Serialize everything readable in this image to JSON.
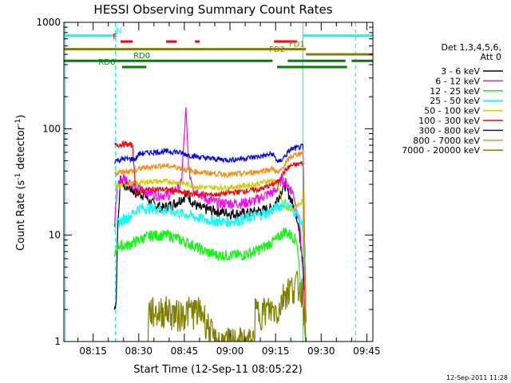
{
  "chart_data": {
    "type": "line",
    "title": "HESSI Observing Summary Count Rates",
    "xlabel": "Start Time (12-Sep-11 08:05:22)",
    "ylabel_main": "Count Rate (s",
    "ylabel_sup1": "-1",
    "ylabel_mid": " detector",
    "ylabel_sup2": "-1",
    "ylabel_end": ")",
    "y_scale": "log",
    "ylim": [
      1,
      1000
    ],
    "xlim_minutes": [
      5.37,
      107.0
    ],
    "y_ticks": [
      {
        "value": 1,
        "label": "1"
      },
      {
        "value": 10,
        "label": "10"
      },
      {
        "value": 100,
        "label": "100"
      },
      {
        "value": 1000,
        "label": "1000"
      }
    ],
    "x_ticks": [
      {
        "t": 15,
        "label": "08:15"
      },
      {
        "t": 30,
        "label": "08:30"
      },
      {
        "t": 45,
        "label": "08:45"
      },
      {
        "t": 60,
        "label": "09:00"
      },
      {
        "t": 75,
        "label": "09:15"
      },
      {
        "t": 90,
        "label": "09:30"
      },
      {
        "t": 105,
        "label": "09:45"
      }
    ],
    "timestamp": "12-Sep-2011 11:28",
    "legend_header": [
      "Det 1,3,4,5,6,",
      "Att 0"
    ],
    "series": [
      {
        "name": "3 - 6 keV",
        "color": "#000000",
        "points": [
          [
            22,
            2
          ],
          [
            22.6,
            2.5
          ],
          [
            23,
            10
          ],
          [
            24,
            35
          ],
          [
            25,
            30
          ],
          [
            27,
            28
          ],
          [
            29,
            25
          ],
          [
            32,
            24
          ],
          [
            34,
            20
          ],
          [
            38,
            18
          ],
          [
            42,
            20
          ],
          [
            44,
            22
          ],
          [
            46,
            24
          ],
          [
            48,
            20
          ],
          [
            50,
            18
          ],
          [
            55,
            17
          ],
          [
            60,
            16
          ],
          [
            65,
            16
          ],
          [
            70,
            17
          ],
          [
            74,
            18
          ],
          [
            78,
            30
          ],
          [
            80,
            22
          ],
          [
            82,
            15
          ],
          [
            84,
            6
          ],
          [
            85,
            1.5
          ]
        ]
      },
      {
        "name": "6 - 12 keV",
        "color": "#ff00ff",
        "points": [
          [
            22,
            12
          ],
          [
            23,
            30
          ],
          [
            25,
            35
          ],
          [
            28,
            30
          ],
          [
            30,
            28
          ],
          [
            32,
            26
          ],
          [
            36,
            24
          ],
          [
            40,
            24
          ],
          [
            44,
            30
          ],
          [
            45.5,
            150
          ],
          [
            46.5,
            40
          ],
          [
            48,
            28
          ],
          [
            52,
            22
          ],
          [
            56,
            20
          ],
          [
            60,
            20
          ],
          [
            64,
            20
          ],
          [
            68,
            21
          ],
          [
            72,
            24
          ],
          [
            75,
            26
          ],
          [
            77,
            34
          ],
          [
            79,
            30
          ],
          [
            81,
            24
          ],
          [
            83,
            12
          ],
          [
            84,
            4
          ],
          [
            85,
            1.5
          ]
        ]
      },
      {
        "name": "12 - 25 keV",
        "color": "#00ff00",
        "points": [
          [
            22,
            6
          ],
          [
            23,
            8
          ],
          [
            26,
            8
          ],
          [
            30,
            9
          ],
          [
            34,
            10
          ],
          [
            40,
            10
          ],
          [
            44,
            9
          ],
          [
            48,
            8
          ],
          [
            52,
            7
          ],
          [
            56,
            6.5
          ],
          [
            60,
            6.5
          ],
          [
            64,
            6.5
          ],
          [
            68,
            7
          ],
          [
            72,
            8
          ],
          [
            75,
            9
          ],
          [
            78,
            11
          ],
          [
            80,
            10
          ],
          [
            82,
            9
          ],
          [
            84,
            2
          ],
          [
            85,
            1
          ]
        ]
      },
      {
        "name": "25 - 50 keV",
        "color": "#00ffff",
        "points": [
          [
            22,
            12
          ],
          [
            23,
            13
          ],
          [
            27,
            15
          ],
          [
            30,
            18
          ],
          [
            34,
            18
          ],
          [
            40,
            17
          ],
          [
            44,
            16
          ],
          [
            48,
            15
          ],
          [
            52,
            14
          ],
          [
            56,
            13.5
          ],
          [
            60,
            13.5
          ],
          [
            64,
            14
          ],
          [
            68,
            15
          ],
          [
            72,
            16
          ],
          [
            75,
            18
          ],
          [
            78,
            20
          ],
          [
            80,
            18
          ],
          [
            82,
            16
          ],
          [
            84,
            12
          ],
          [
            85,
            1.5
          ]
        ]
      },
      {
        "name": "50 - 100 keV",
        "color": "#cccc00",
        "points": [
          [
            22,
            28
          ],
          [
            25,
            30
          ],
          [
            30,
            31
          ],
          [
            34,
            32
          ],
          [
            40,
            32
          ],
          [
            44,
            31
          ],
          [
            48,
            29
          ],
          [
            52,
            28
          ],
          [
            56,
            28
          ],
          [
            60,
            28
          ],
          [
            64,
            29
          ],
          [
            68,
            30
          ],
          [
            72,
            32
          ],
          [
            75,
            33
          ],
          [
            78,
            18
          ],
          [
            80,
            17
          ],
          [
            82,
            19
          ],
          [
            84,
            21
          ],
          [
            85,
            1.5
          ]
        ]
      },
      {
        "name": "100 - 300 keV",
        "color": "#ff0000",
        "points": [
          [
            22,
            70
          ],
          [
            25,
            72
          ],
          [
            28,
            70
          ],
          [
            29,
            25
          ],
          [
            30,
            26
          ],
          [
            34,
            27
          ],
          [
            38,
            27
          ],
          [
            42,
            26
          ],
          [
            44,
            25
          ],
          [
            46,
            25
          ],
          [
            50,
            24
          ],
          [
            55,
            24
          ],
          [
            60,
            25
          ],
          [
            65,
            26
          ],
          [
            70,
            27
          ],
          [
            74,
            30
          ],
          [
            76,
            32
          ],
          [
            78,
            40
          ],
          [
            80,
            45
          ],
          [
            82,
            46
          ],
          [
            84,
            48
          ],
          [
            85,
            1.5
          ]
        ]
      },
      {
        "name": "300 - 800 keV",
        "color": "#0000ff",
        "points": [
          [
            22,
            50
          ],
          [
            25,
            52
          ],
          [
            29,
            52
          ],
          [
            30,
            58
          ],
          [
            34,
            60
          ],
          [
            38,
            61
          ],
          [
            42,
            61
          ],
          [
            46,
            57
          ],
          [
            50,
            54
          ],
          [
            55,
            52
          ],
          [
            60,
            51
          ],
          [
            65,
            53
          ],
          [
            70,
            55
          ],
          [
            74,
            58
          ],
          [
            76,
            48
          ],
          [
            78,
            55
          ],
          [
            80,
            64
          ],
          [
            84,
            68
          ],
          [
            85,
            1.5
          ]
        ]
      },
      {
        "name": "800 - 7000 keV",
        "color": "#ff8800",
        "points": [
          [
            22,
            38
          ],
          [
            25,
            40
          ],
          [
            29,
            40
          ],
          [
            30,
            42
          ],
          [
            34,
            44
          ],
          [
            38,
            45
          ],
          [
            42,
            44
          ],
          [
            46,
            41
          ],
          [
            50,
            39
          ],
          [
            55,
            38
          ],
          [
            60,
            37
          ],
          [
            65,
            38
          ],
          [
            70,
            40
          ],
          [
            74,
            42
          ],
          [
            76,
            38
          ],
          [
            78,
            46
          ],
          [
            80,
            55
          ],
          [
            84,
            60
          ],
          [
            85,
            1.5
          ]
        ]
      },
      {
        "name": "7000 - 20000 keV",
        "color": "#808000",
        "points": [
          [
            33,
            1
          ],
          [
            33.2,
            2
          ],
          [
            36,
            1.9
          ],
          [
            39,
            2
          ],
          [
            43,
            1.8
          ],
          [
            47,
            2
          ],
          [
            51,
            1.9
          ],
          [
            55,
            1
          ],
          [
            68,
            1
          ],
          [
            68.3,
            1.9
          ],
          [
            72,
            2
          ],
          [
            76,
            2
          ],
          [
            78,
            3
          ],
          [
            80,
            3.2
          ],
          [
            82,
            3.5
          ],
          [
            84,
            3
          ],
          [
            85,
            1
          ]
        ]
      }
    ],
    "flags": [
      {
        "label": "N",
        "color": "#00ffff",
        "y": 750,
        "spans": [
          [
            5.5,
            22.5
          ],
          [
            84,
            107
          ]
        ],
        "label_t": 23.5
      },
      {
        "label": "F",
        "color": "#ff0000",
        "y": 660,
        "spans": [
          [
            24,
            28
          ],
          [
            39,
            42.5
          ],
          [
            48.5,
            50
          ],
          [
            74.5,
            82
          ]
        ],
        "label_t": 22.2
      },
      {
        "label": "FD1",
        "color": "#808000",
        "y": 560,
        "spans": [
          [
            5.5,
            85
          ]
        ],
        "label_t": 82
      },
      {
        "label": "FD2",
        "color": "#808000",
        "y": 500,
        "spans": [
          [
            85,
            107
          ]
        ],
        "label_t": 75.5
      },
      {
        "label": "RD0",
        "color": "#008000",
        "y": 435,
        "spans": [
          [
            5.5,
            74
          ],
          [
            79,
            98
          ],
          [
            100,
            107
          ]
        ],
        "label_t": 31
      },
      {
        "label": "RD6",
        "color": "#008000",
        "y": 380,
        "spans": [
          [
            24.5,
            32.5
          ],
          [
            75.5,
            98.5
          ]
        ],
        "label_t": 19.5
      }
    ],
    "vlines": [
      {
        "t": 5.8,
        "color": "#00ffff",
        "style": "solid"
      },
      {
        "t": 84,
        "color": "#00ffff",
        "style": "solid"
      },
      {
        "t": 22.3,
        "color": "#00ffff",
        "style": "dashed"
      },
      {
        "t": 101.3,
        "color": "#00ffff",
        "style": "dashed"
      }
    ]
  }
}
